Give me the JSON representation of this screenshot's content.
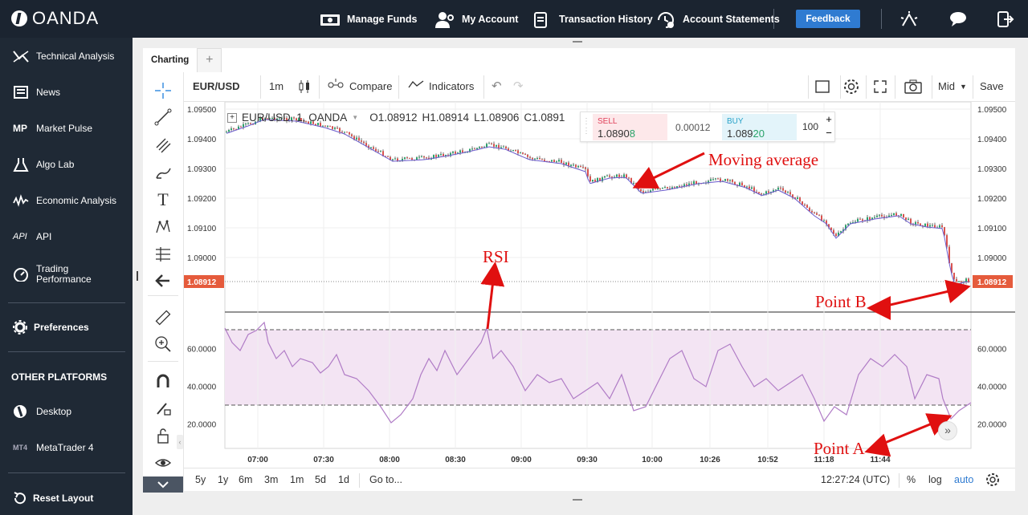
{
  "topbar": {
    "brand": "OANDA",
    "nav": [
      {
        "label": "Manage Funds",
        "icon": "money-icon"
      },
      {
        "label": "My Account",
        "icon": "user-gear-icon"
      },
      {
        "label": "Transaction History",
        "icon": "document-icon"
      },
      {
        "label": "Account Statements",
        "icon": "history-icon"
      }
    ],
    "feedback_label": "Feedback",
    "right_icons": [
      "sparkle-icon",
      "chat-icon",
      "logout-icon"
    ]
  },
  "sidebar": {
    "items": [
      {
        "label": "Technical Analysis",
        "icon": "technical-analysis-icon"
      },
      {
        "label": "News",
        "icon": "news-icon"
      },
      {
        "label": "Market Pulse",
        "icon": "market-pulse-icon"
      },
      {
        "label": "Algo Lab",
        "icon": "flask-icon"
      },
      {
        "label": "Economic Analysis",
        "icon": "economic-analysis-icon"
      },
      {
        "label": "API",
        "icon": "api-icon"
      },
      {
        "label": "Trading Performance",
        "icon": "gauge-icon"
      }
    ],
    "preferences_label": "Preferences",
    "other_platforms_heading": "OTHER PLATFORMS",
    "platforms": [
      {
        "label": "Desktop",
        "icon": "desktop-logo-icon"
      },
      {
        "label": "MetaTrader 4",
        "icon": "mt4-icon"
      }
    ],
    "reset_label": "Reset Layout",
    "mp_abbrev": "MP",
    "api_abbrev": "API",
    "mt4_abbrev": "MT4"
  },
  "tabs": {
    "active": "Charting",
    "add": "+"
  },
  "toolbar": {
    "symbol": "EUR/USD",
    "interval": "1m",
    "compare_label": "Compare",
    "indicators_label": "Indicators",
    "price_type": "Mid",
    "save_label": "Save"
  },
  "legend": {
    "symbol_line": "EUR/USD, 1, OANDA",
    "open": "O1.08912",
    "high": "H1.08914",
    "low": "L1.08906",
    "close": "C1.0891"
  },
  "trade": {
    "sell_label": "SELL",
    "sell_price_main": "1.0890",
    "sell_price_pip": "8",
    "spread": "0.00012",
    "buy_label": "BUY",
    "buy_price_main": "1.089",
    "buy_price_pip": "20",
    "quantity": "100"
  },
  "chart": {
    "price_ticks": [
      "1.09500",
      "1.09400",
      "1.09300",
      "1.09200",
      "1.09100",
      "1.09000"
    ],
    "current_price": "1.08912",
    "rsi_ticks": [
      "60.0000",
      "40.0000",
      "20.0000"
    ],
    "time_ticks": [
      "07:00",
      "07:30",
      "08:00",
      "08:30",
      "09:00",
      "09:30",
      "10:00",
      "10:26",
      "10:52",
      "11:18",
      "11:44"
    ]
  },
  "annotations": {
    "moving_average": "Moving average",
    "rsi": "RSI",
    "point_b": "Point B",
    "point_a": "Point  A"
  },
  "bottombar": {
    "ranges": [
      "5y",
      "1y",
      "6m",
      "3m",
      "1m",
      "5d",
      "1d"
    ],
    "goto": "Go to...",
    "clock": "12:27:24 (UTC)",
    "percent": "%",
    "log": "log",
    "auto": "auto"
  },
  "colors": {
    "topbar_bg": "#1b2430",
    "sidebar_bg": "#1f2935",
    "feedback_bg": "#2f7bd1",
    "price_label_bg": "#e55b3c",
    "rsi_line": "#b07cc6",
    "rsi_band": "#f3e4f3",
    "ma_line": "#6a5acd",
    "annotation_red": "#e01010",
    "sell_color": "#e0405a",
    "buy_color": "#2aa3c9"
  }
}
